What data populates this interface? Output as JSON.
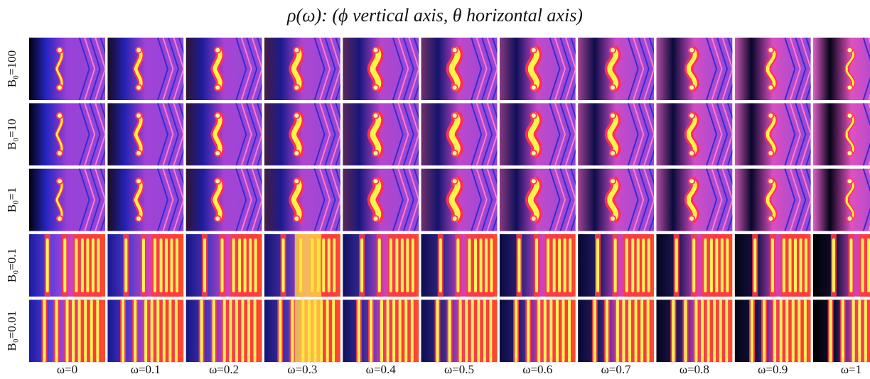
{
  "title": "ρ(ω): (ϕ vertical axis, θ horizontal axis)",
  "rows": [
    "B₀=100",
    "B₀=10",
    "B₀=1",
    "B₀=0.1",
    "B₀=0.01"
  ],
  "columns": [
    "ω=0",
    "ω=0.1",
    "ω=0.2",
    "ω=0.3",
    "ω=0.4",
    "ω=0.5",
    "ω=0.6",
    "ω=0.7",
    "ω=0.8",
    "ω=0.9",
    "ω=1"
  ]
}
